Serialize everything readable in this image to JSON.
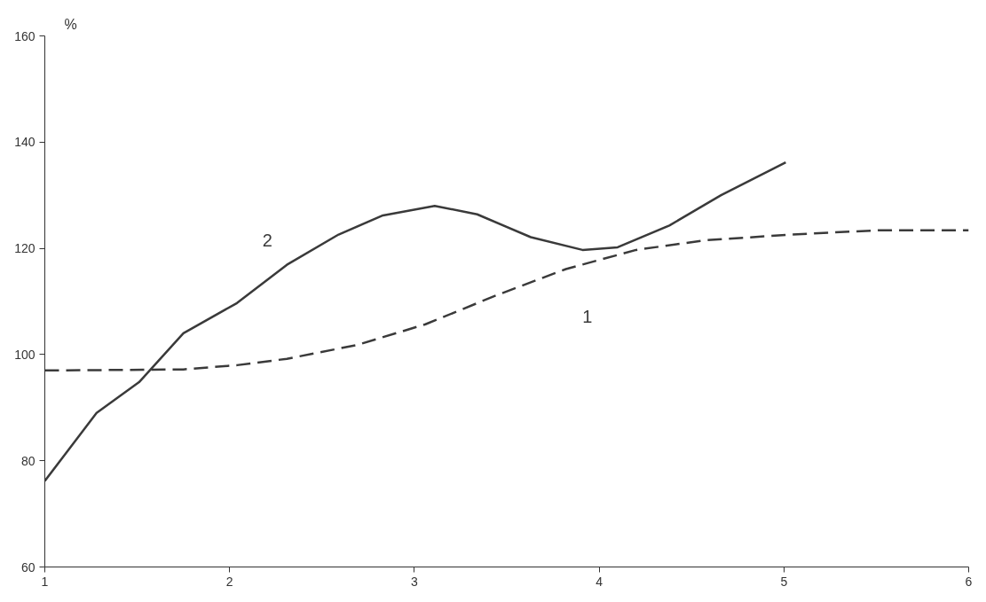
{
  "chart_data": {
    "type": "line",
    "ylabel": "%",
    "xlim": [
      1,
      6
    ],
    "xticks": [
      1,
      2,
      3,
      4,
      5,
      6
    ],
    "ylim": [
      60,
      160
    ],
    "yticks": [
      60,
      80,
      100,
      120,
      140,
      160
    ],
    "grid": false,
    "legend": false,
    "series": [
      {
        "name": "1",
        "color": "#3a3a3a",
        "line_style": "dashed",
        "x": [
          1.0,
          1.75,
          2.04,
          2.31,
          2.69,
          3.06,
          3.44,
          3.82,
          4.2,
          4.57,
          5.04,
          5.51,
          6.0
        ],
        "values": [
          97.0,
          97.2,
          98.0,
          99.2,
          101.8,
          105.7,
          111.1,
          116.1,
          119.7,
          121.5,
          122.6,
          123.4,
          123.4
        ]
      },
      {
        "name": "2",
        "color": "#3a3a3a",
        "line_style": "solid",
        "x": [
          1.0,
          1.28,
          1.51,
          1.75,
          2.04,
          2.31,
          2.59,
          2.83,
          3.11,
          3.34,
          3.63,
          3.91,
          4.1,
          4.38,
          4.66,
          5.01
        ],
        "values": [
          76.2,
          89.0,
          94.8,
          104.0,
          109.7,
          116.9,
          122.6,
          126.2,
          128.0,
          126.4,
          122.1,
          119.7,
          120.2,
          124.3,
          130.0,
          136.2
        ]
      }
    ]
  }
}
